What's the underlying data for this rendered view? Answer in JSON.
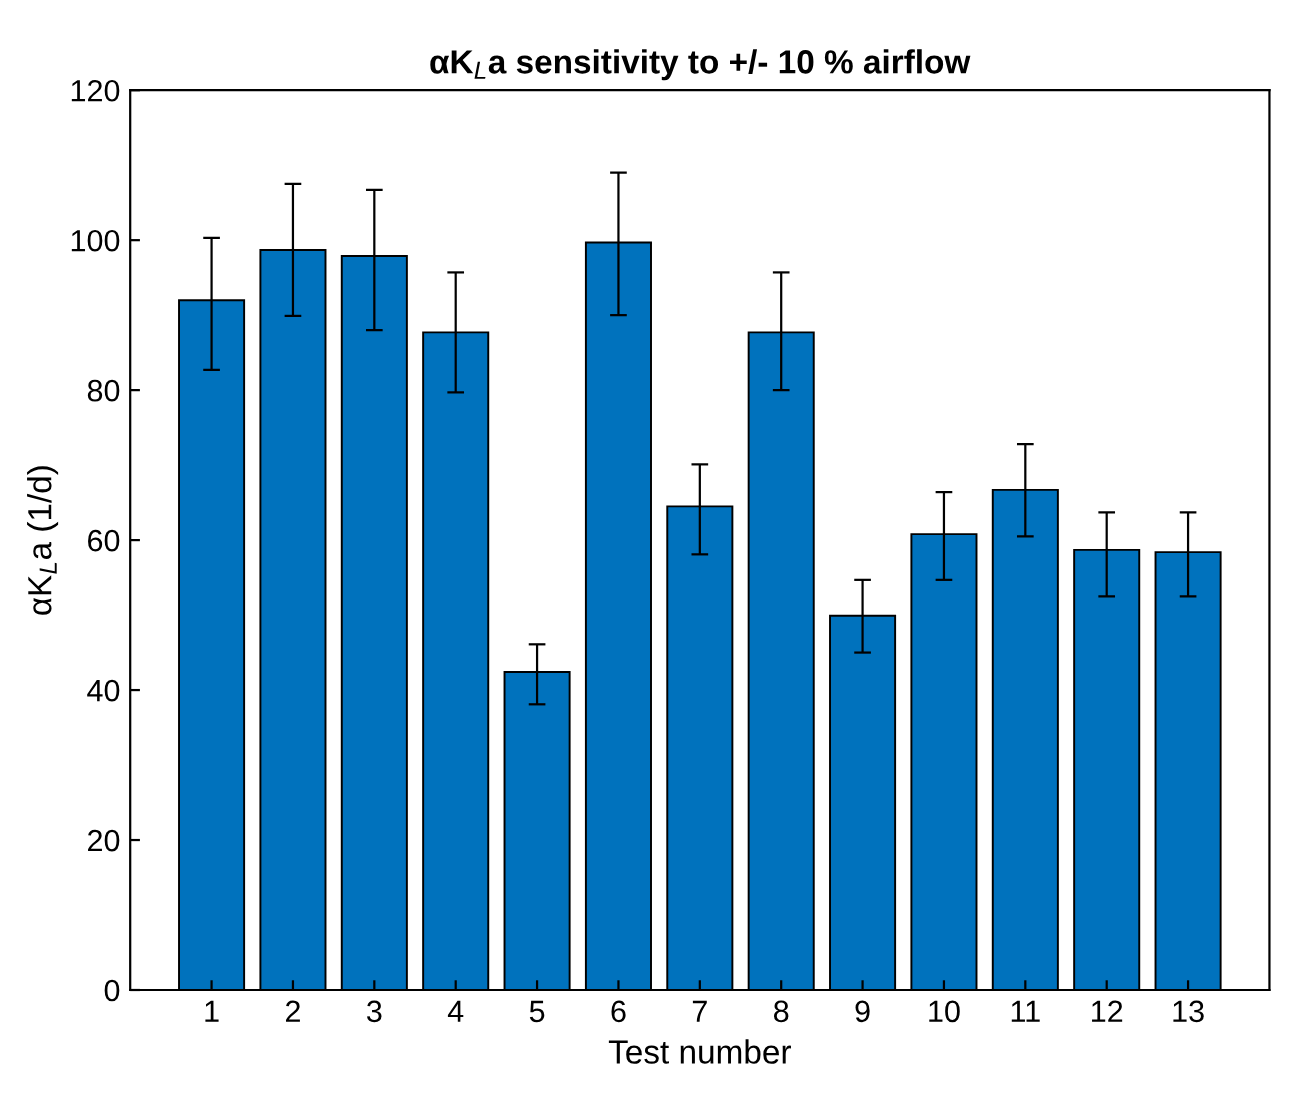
{
  "chart_data": {
    "type": "bar",
    "title": "αK$_{L}$a sensitivity to +/- 10 % airflow",
    "xlabel": "Test number",
    "ylabel": "αK$_{L}$a (1/d)",
    "categories": [
      "1",
      "2",
      "3",
      "4",
      "5",
      "6",
      "7",
      "8",
      "9",
      "10",
      "11",
      "12",
      "13"
    ],
    "values": [
      92,
      98.7,
      97.9,
      87.7,
      42.4,
      99.7,
      64.5,
      87.7,
      49.9,
      60.8,
      66.7,
      58.7,
      58.4
    ],
    "errors": [
      [
        82.7,
        100.3
      ],
      [
        89.9,
        107.5
      ],
      [
        88,
        106.7
      ],
      [
        79.7,
        95.7
      ],
      [
        38.1,
        46.1
      ],
      [
        90,
        109
      ],
      [
        58.1,
        70.1
      ],
      [
        80,
        95.7
      ],
      [
        45,
        54.7
      ],
      [
        54.7,
        66.4
      ],
      [
        60.5,
        72.8
      ],
      [
        52.5,
        63.7
      ],
      [
        52.5,
        63.7
      ]
    ],
    "color": "#0072bd",
    "ylim": [
      0,
      120
    ],
    "yticks": [
      0,
      20,
      40,
      60,
      80,
      100,
      120
    ],
    "grid": false,
    "legend": false
  }
}
